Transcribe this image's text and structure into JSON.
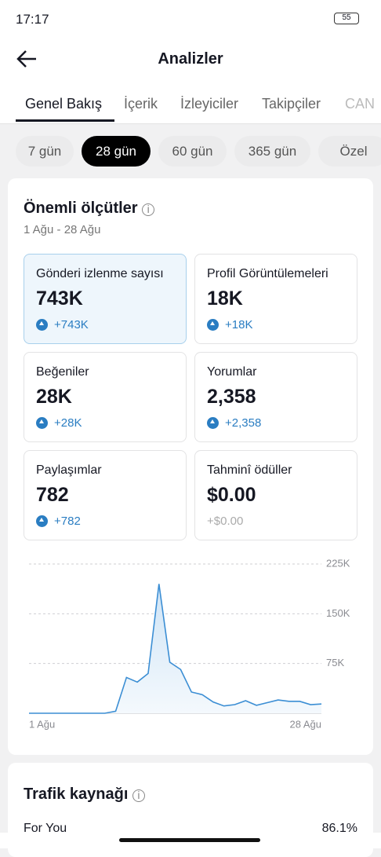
{
  "status_bar": {
    "time": "17:17",
    "battery": "55"
  },
  "header": {
    "title": "Analizler"
  },
  "tabs": [
    "Genel Bakış",
    "İçerik",
    "İzleyiciler",
    "Takipçiler",
    "CAN"
  ],
  "periods": [
    "7 gün",
    "28 gün",
    "60 gün",
    "365 gün",
    "Özel"
  ],
  "key_metrics": {
    "title": "Önemli ölçütler",
    "date_range": "1 Ağu - 28 Ağu",
    "items": [
      {
        "label": "Gönderi izlenme sayısı",
        "value": "743K",
        "change": "+743K"
      },
      {
        "label": "Profil Görüntülemeleri",
        "value": "18K",
        "change": "+18K"
      },
      {
        "label": "Beğeniler",
        "value": "28K",
        "change": "+28K"
      },
      {
        "label": "Yorumlar",
        "value": "2,358",
        "change": "+2,358"
      },
      {
        "label": "Paylaşımlar",
        "value": "782",
        "change": "+782"
      },
      {
        "label": "Tahminî ödüller",
        "value": "$0.00",
        "change": "+$0.00"
      }
    ]
  },
  "chart_data": {
    "type": "line",
    "color": "#3b8ed4",
    "categories": [
      "1 Ağu",
      null,
      null,
      null,
      null,
      null,
      null,
      null,
      null,
      null,
      null,
      null,
      null,
      null,
      null,
      null,
      null,
      null,
      null,
      null,
      null,
      null,
      null,
      null,
      null,
      null,
      null,
      "28 Ağu"
    ],
    "values": [
      0,
      0,
      0,
      0,
      0,
      0,
      0,
      0,
      3000,
      54000,
      47000,
      60000,
      195000,
      77000,
      66000,
      32000,
      28000,
      17000,
      11000,
      13000,
      19000,
      12000,
      16000,
      20000,
      18000,
      18000,
      13000,
      14000
    ],
    "ylim": [
      0,
      225000
    ],
    "yticks": [
      {
        "value": 75000,
        "label": "75K"
      },
      {
        "value": 150000,
        "label": "150K"
      },
      {
        "value": 225000,
        "label": "225K"
      }
    ],
    "grid": true
  },
  "traffic": {
    "title": "Trafik kaynağı",
    "rows": [
      {
        "label": "For You",
        "value": "86.1%"
      }
    ]
  }
}
